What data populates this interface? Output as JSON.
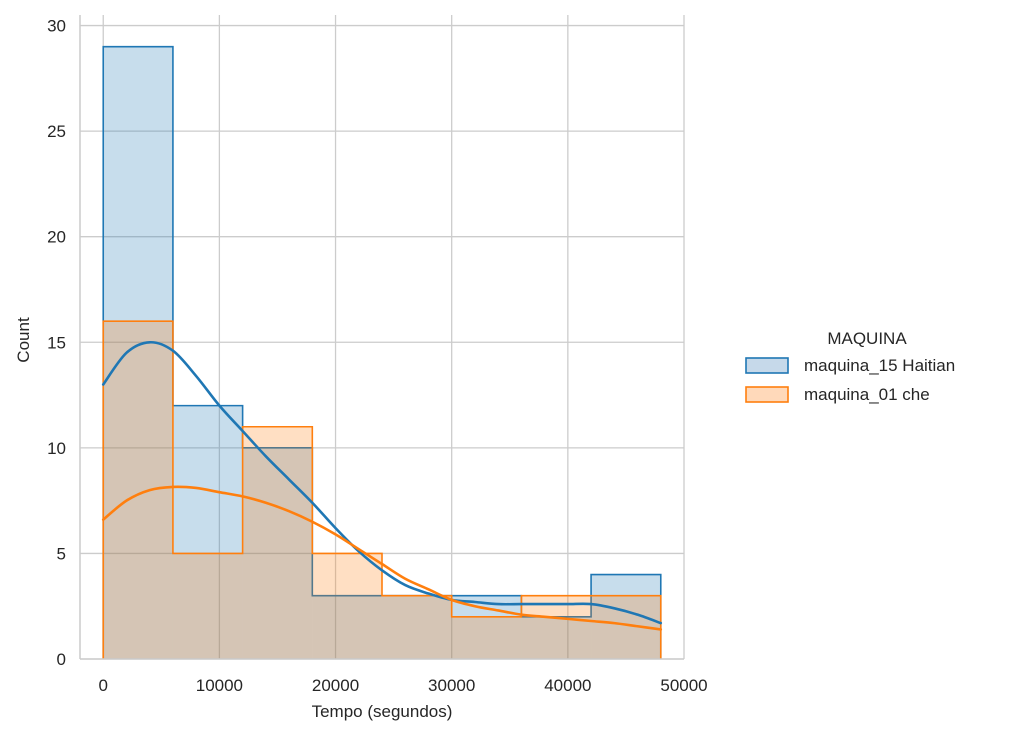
{
  "chart_data": {
    "type": "histogram",
    "xlabel": "Tempo (segundos)",
    "ylabel": "Count",
    "xlim": [
      -2000,
      50000
    ],
    "ylim": [
      0,
      30.5
    ],
    "x_ticks": [
      0,
      10000,
      20000,
      30000,
      40000,
      50000
    ],
    "y_ticks": [
      0,
      5,
      10,
      15,
      20,
      25,
      30
    ],
    "grid": true,
    "bin_edges": [
      0,
      6000,
      12000,
      18000,
      24000,
      30000,
      36000,
      42000,
      48000
    ],
    "legend": {
      "title": "MAQUINA",
      "placement": "right"
    },
    "series": [
      {
        "name": "maquina_15 Haitian",
        "color": "#1f77b4",
        "fill": "#c6d9ea",
        "counts": [
          29,
          12,
          10,
          3,
          3,
          3,
          2,
          4
        ],
        "kde": [
          [
            0,
            13.0
          ],
          [
            2000,
            14.5
          ],
          [
            4000,
            15.0
          ],
          [
            6000,
            14.6
          ],
          [
            8000,
            13.4
          ],
          [
            10000,
            12.0
          ],
          [
            12000,
            10.8
          ],
          [
            14000,
            9.6
          ],
          [
            16000,
            8.5
          ],
          [
            18000,
            7.4
          ],
          [
            20000,
            6.2
          ],
          [
            22000,
            5.1
          ],
          [
            24000,
            4.2
          ],
          [
            26000,
            3.5
          ],
          [
            28000,
            3.1
          ],
          [
            30000,
            2.8
          ],
          [
            32000,
            2.7
          ],
          [
            34000,
            2.6
          ],
          [
            36000,
            2.6
          ],
          [
            38000,
            2.6
          ],
          [
            40000,
            2.6
          ],
          [
            42000,
            2.6
          ],
          [
            44000,
            2.4
          ],
          [
            46000,
            2.1
          ],
          [
            48000,
            1.7
          ]
        ]
      },
      {
        "name": "maquina_01 che",
        "color": "#ff7f0e",
        "fill": "#ffd9ba",
        "counts": [
          16,
          5,
          11,
          5,
          3,
          2,
          3,
          3
        ],
        "kde": [
          [
            0,
            6.6
          ],
          [
            2000,
            7.5
          ],
          [
            4000,
            8.0
          ],
          [
            6000,
            8.15
          ],
          [
            8000,
            8.1
          ],
          [
            10000,
            7.9
          ],
          [
            12000,
            7.7
          ],
          [
            14000,
            7.4
          ],
          [
            16000,
            7.0
          ],
          [
            18000,
            6.5
          ],
          [
            20000,
            5.9
          ],
          [
            22000,
            5.2
          ],
          [
            24000,
            4.5
          ],
          [
            26000,
            3.8
          ],
          [
            28000,
            3.3
          ],
          [
            30000,
            2.8
          ],
          [
            32000,
            2.5
          ],
          [
            34000,
            2.3
          ],
          [
            36000,
            2.1
          ],
          [
            38000,
            2.0
          ],
          [
            40000,
            1.9
          ],
          [
            42000,
            1.8
          ],
          [
            44000,
            1.7
          ],
          [
            46000,
            1.55
          ],
          [
            48000,
            1.4
          ]
        ]
      }
    ]
  }
}
